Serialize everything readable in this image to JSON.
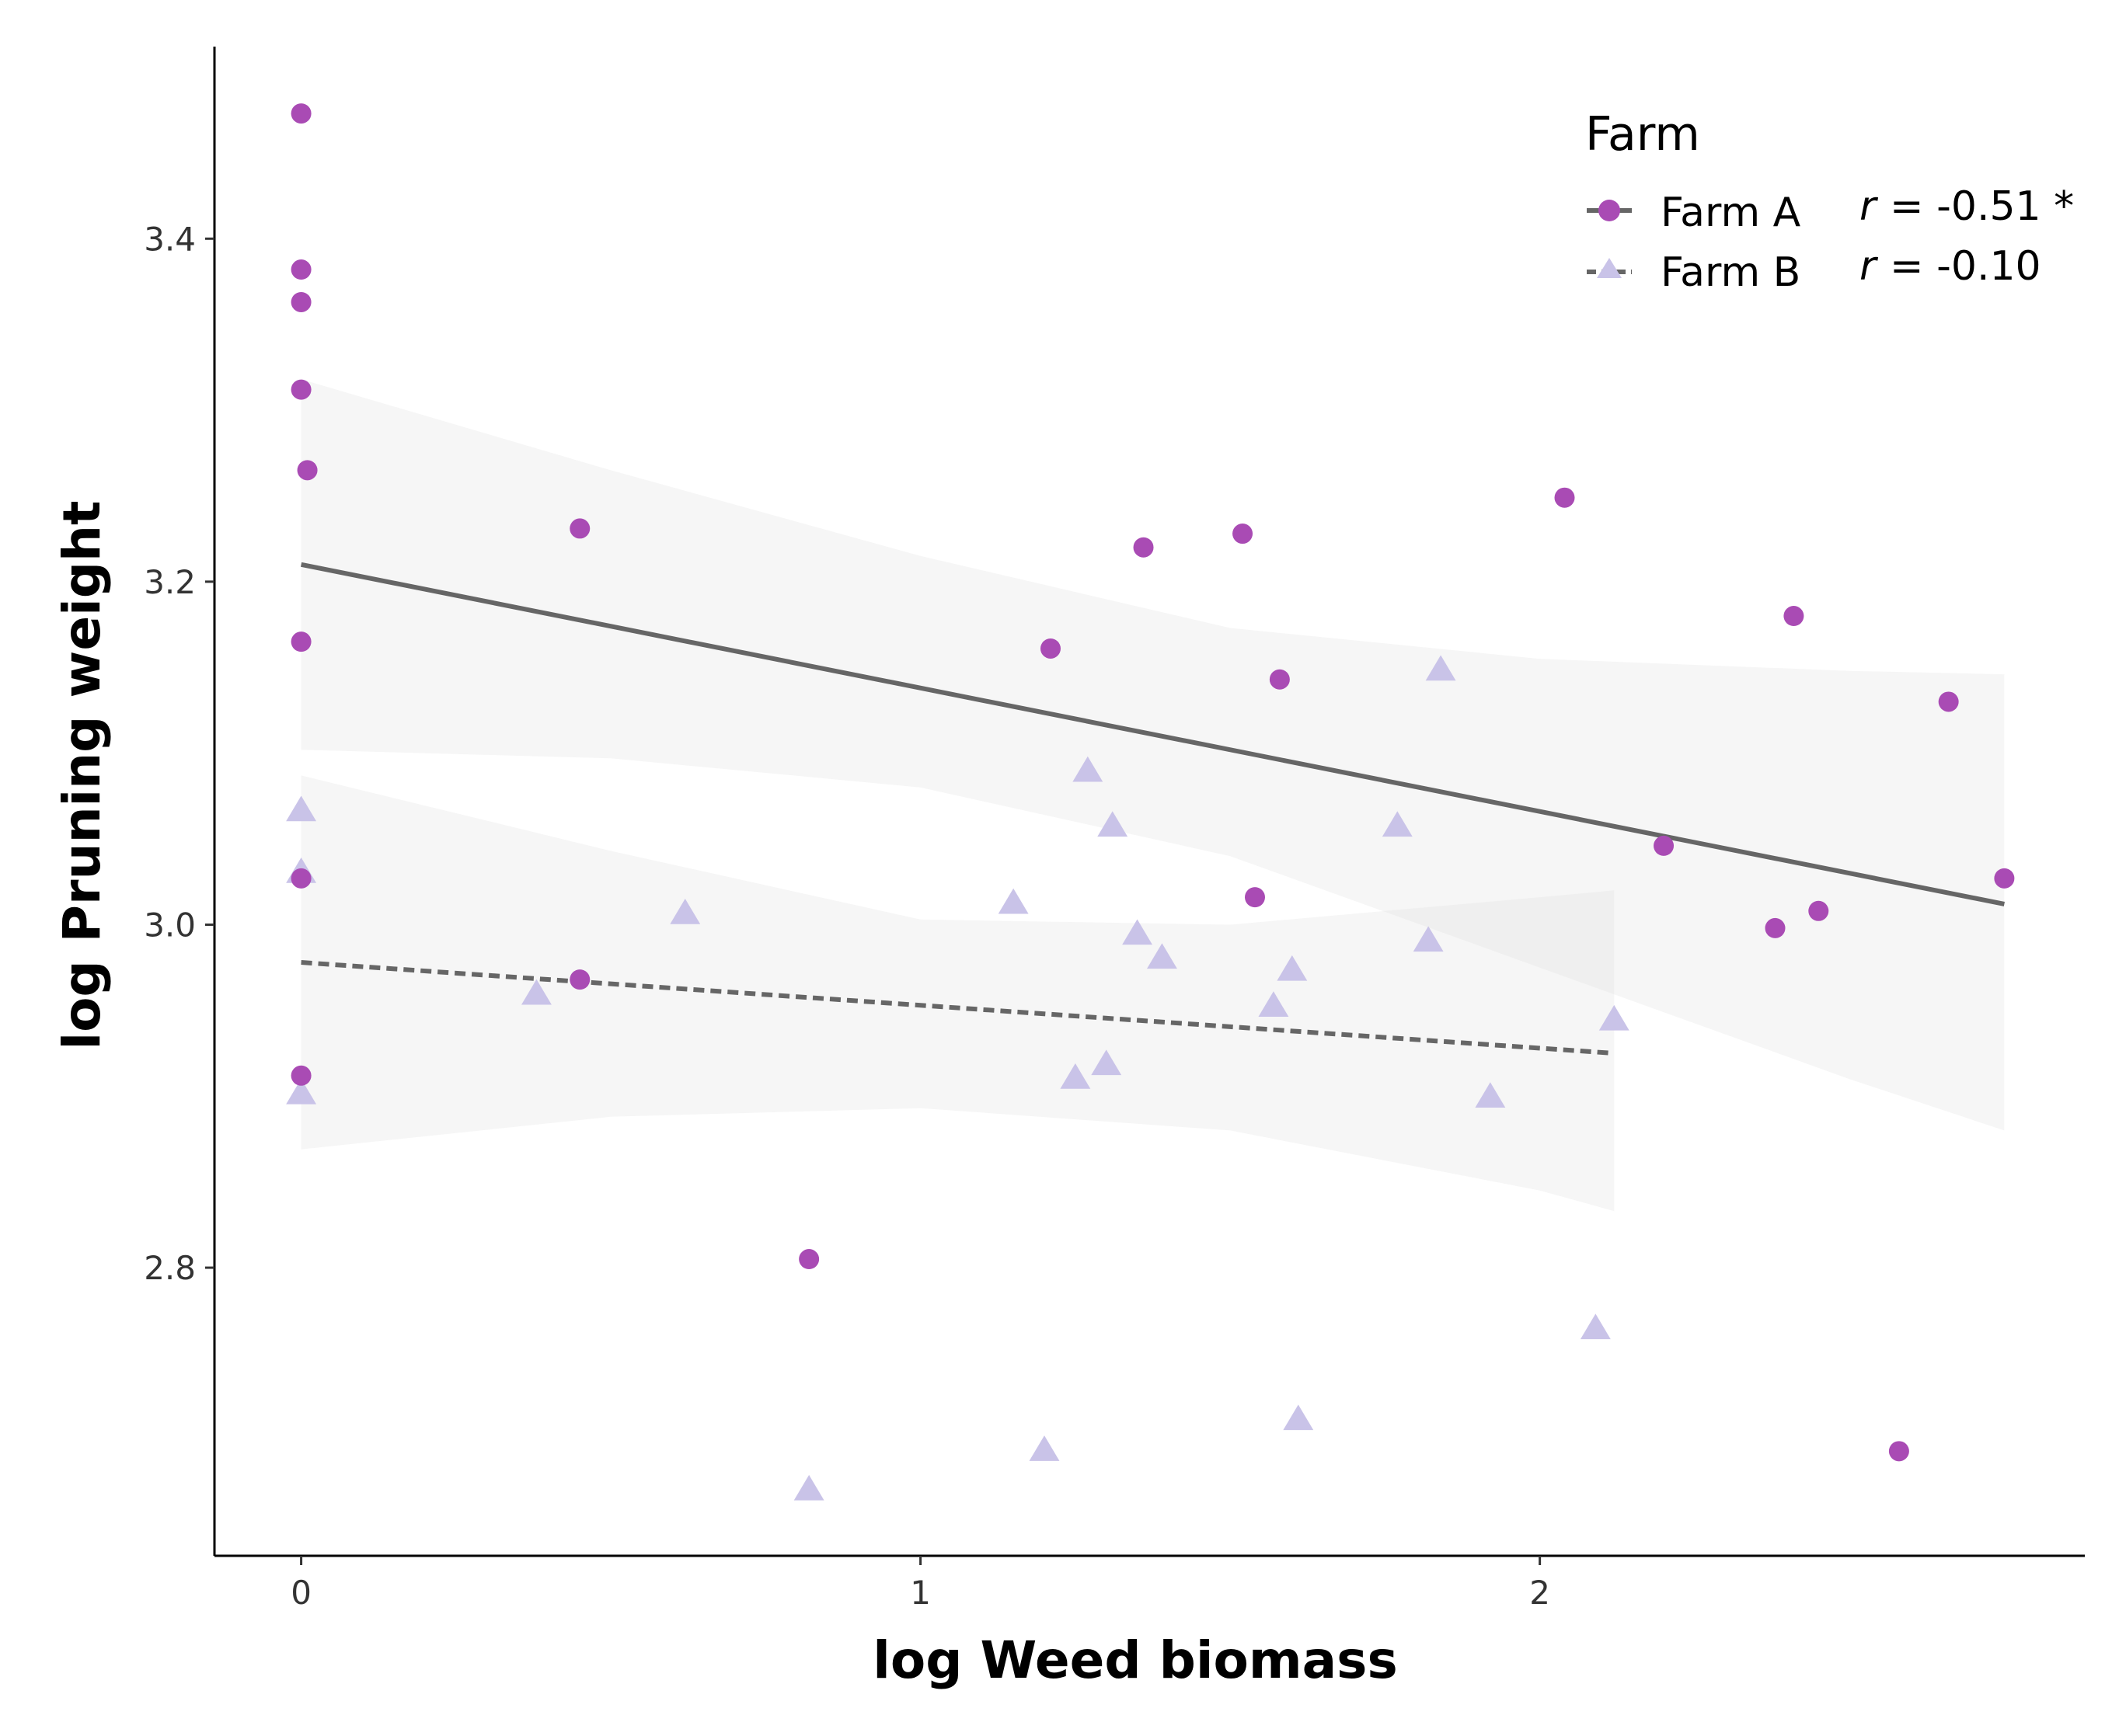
{
  "chart_data": {
    "type": "scatter",
    "title": "",
    "xlabel": "log Weed biomass",
    "ylabel": "log Pruning weight",
    "xlim": [
      -0.14,
      2.88
    ],
    "ylim": [
      2.632,
      3.512
    ],
    "x_ticks": [
      0,
      1,
      2
    ],
    "y_ticks": [
      2.8,
      3.0,
      3.2,
      3.4
    ],
    "x_tick_labels": [
      "0",
      "1",
      "2"
    ],
    "y_tick_labels": [
      "2.8",
      "3.0",
      "3.2",
      "3.4"
    ],
    "grid": false,
    "legend": {
      "title": "Farm",
      "position": "top-right",
      "entries": [
        {
          "name": "Farm A",
          "r_prefix": "r",
          "r_value": "= -0.51 *"
        },
        {
          "name": "Farm B",
          "r_prefix": "r",
          "r_value": "= -0.10"
        }
      ]
    },
    "series": [
      {
        "name": "Farm A",
        "marker": "circle",
        "color": "#a94bb4",
        "line_style": "solid",
        "line_color": "#666666",
        "fit": {
          "x": [
            0,
            2.75
          ],
          "y": [
            3.21,
            3.012
          ]
        },
        "ci_upper": {
          "x": [
            0,
            0.5,
            1.0,
            1.5,
            2.0,
            2.5,
            2.75
          ],
          "y": [
            3.318,
            3.265,
            3.215,
            3.173,
            3.155,
            3.148,
            3.146
          ]
        },
        "ci_lower": {
          "x": [
            0,
            0.5,
            1.0,
            1.5,
            2.0,
            2.5,
            2.75
          ],
          "y": [
            3.102,
            3.097,
            3.08,
            3.04,
            2.975,
            2.91,
            2.88
          ]
        },
        "points": [
          {
            "x": 0,
            "y": 3.473
          },
          {
            "x": 0,
            "y": 3.382
          },
          {
            "x": 0,
            "y": 3.363
          },
          {
            "x": 0,
            "y": 3.312
          },
          {
            "x": 0.01,
            "y": 3.265
          },
          {
            "x": 0,
            "y": 3.165
          },
          {
            "x": 0,
            "y": 3.027
          },
          {
            "x": 0,
            "y": 2.912
          },
          {
            "x": 0.45,
            "y": 3.231
          },
          {
            "x": 0.45,
            "y": 2.968
          },
          {
            "x": 0.82,
            "y": 2.805
          },
          {
            "x": 1.21,
            "y": 3.161
          },
          {
            "x": 1.36,
            "y": 3.22
          },
          {
            "x": 1.52,
            "y": 3.228
          },
          {
            "x": 1.54,
            "y": 3.016
          },
          {
            "x": 1.58,
            "y": 3.143
          },
          {
            "x": 2.04,
            "y": 3.249
          },
          {
            "x": 2.2,
            "y": 3.046
          },
          {
            "x": 2.38,
            "y": 2.998
          },
          {
            "x": 2.41,
            "y": 3.18
          },
          {
            "x": 2.45,
            "y": 3.008
          },
          {
            "x": 2.58,
            "y": 2.693
          },
          {
            "x": 2.66,
            "y": 3.13
          },
          {
            "x": 2.75,
            "y": 3.027
          }
        ]
      },
      {
        "name": "Farm B",
        "marker": "triangle",
        "color": "#c9c3e8",
        "line_style": "dashed",
        "line_color": "#666666",
        "fit": {
          "x": [
            0,
            2.12
          ],
          "y": [
            2.978,
            2.925
          ]
        },
        "ci_upper": {
          "x": [
            0,
            0.5,
            1.0,
            1.5,
            2.0,
            2.12
          ],
          "y": [
            3.087,
            3.043,
            3.003,
            3.0,
            3.016,
            3.02
          ]
        },
        "ci_lower": {
          "x": [
            0,
            0.5,
            1.0,
            1.5,
            2.0,
            2.12
          ],
          "y": [
            2.869,
            2.888,
            2.893,
            2.88,
            2.845,
            2.833
          ]
        },
        "points": [
          {
            "x": 0,
            "y": 3.067
          },
          {
            "x": 0,
            "y": 3.031
          },
          {
            "x": 0,
            "y": 2.902
          },
          {
            "x": 0.38,
            "y": 2.96
          },
          {
            "x": 0.62,
            "y": 3.007
          },
          {
            "x": 0.82,
            "y": 2.671
          },
          {
            "x": 1.15,
            "y": 3.013
          },
          {
            "x": 1.2,
            "y": 2.694
          },
          {
            "x": 1.25,
            "y": 2.911
          },
          {
            "x": 1.27,
            "y": 3.09
          },
          {
            "x": 1.3,
            "y": 2.919
          },
          {
            "x": 1.31,
            "y": 3.058
          },
          {
            "x": 1.35,
            "y": 2.995
          },
          {
            "x": 1.39,
            "y": 2.981
          },
          {
            "x": 1.57,
            "y": 2.953
          },
          {
            "x": 1.6,
            "y": 2.974
          },
          {
            "x": 1.61,
            "y": 2.712
          },
          {
            "x": 1.77,
            "y": 3.058
          },
          {
            "x": 1.82,
            "y": 2.991
          },
          {
            "x": 1.84,
            "y": 3.149
          },
          {
            "x": 1.92,
            "y": 2.9
          },
          {
            "x": 2.09,
            "y": 2.765
          },
          {
            "x": 2.12,
            "y": 2.945
          }
        ]
      }
    ]
  }
}
